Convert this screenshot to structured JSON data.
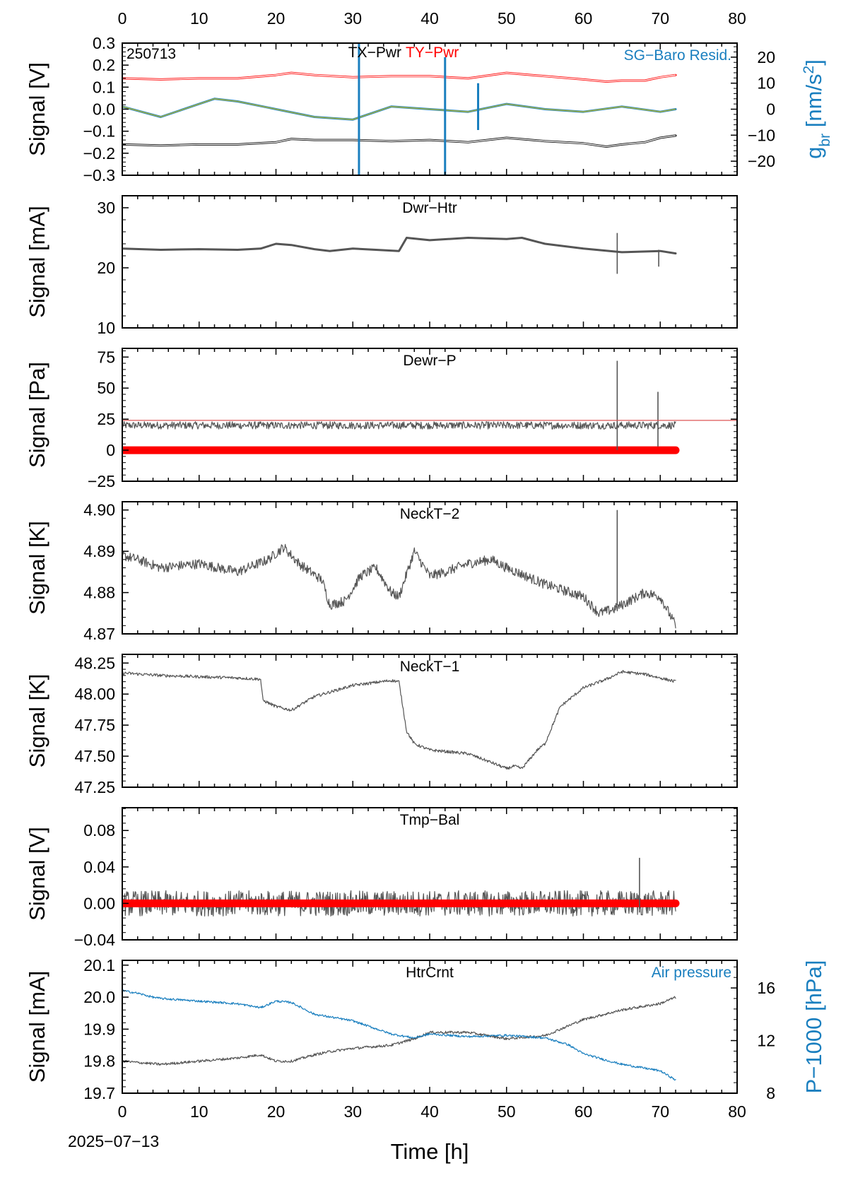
{
  "page": {
    "date_label": "2025−07−13",
    "x_axis_title": "Time [h]"
  },
  "chart_data": [
    {
      "id": "p1",
      "type": "line",
      "label": "250713",
      "series_labels": [
        "TX−Pwr",
        "TY−Pwr",
        "SG−Baro Resid."
      ],
      "ylabel": "Signal [V]",
      "y2label_main": "g",
      "y2label_sub": "br",
      "y2label_tail": " [nm/s",
      "y2label_sup": "2",
      "y2label_end": "]",
      "xlim": [
        0,
        80
      ],
      "ylim": [
        -0.3,
        0.3
      ],
      "yticks": [
        0.3,
        0.2,
        0.1,
        0.0,
        -0.1,
        -0.2,
        -0.3
      ],
      "ytick_labels": [
        "0.3",
        "0.2",
        "0.1",
        "0.0",
        "−0.1",
        "−0.2",
        "−0.3"
      ],
      "y2lim": [
        -25.4,
        25.4
      ],
      "y2ticks": [
        20,
        10,
        0,
        -10,
        -20
      ],
      "y2tick_labels": [
        "20",
        "10",
        "0",
        "−10",
        "−20"
      ],
      "series": [
        {
          "name": "TX−Pwr",
          "color": "#000000",
          "x": [
            0,
            5,
            10,
            15,
            20,
            22,
            25,
            30,
            35,
            40,
            45,
            50,
            55,
            60,
            63,
            65,
            68,
            70,
            72
          ],
          "y": [
            -0.16,
            -0.165,
            -0.16,
            -0.16,
            -0.15,
            -0.135,
            -0.14,
            -0.14,
            -0.145,
            -0.14,
            -0.15,
            -0.13,
            -0.145,
            -0.155,
            -0.17,
            -0.16,
            -0.15,
            -0.13,
            -0.12
          ]
        },
        {
          "name": "TY−Pwr",
          "color": "#ff0000",
          "x": [
            0,
            5,
            10,
            15,
            20,
            22,
            25,
            30,
            35,
            40,
            45,
            50,
            55,
            60,
            63,
            65,
            68,
            70,
            72
          ],
          "y": [
            0.14,
            0.135,
            0.14,
            0.14,
            0.155,
            0.165,
            0.155,
            0.145,
            0.15,
            0.15,
            0.14,
            0.165,
            0.15,
            0.135,
            0.125,
            0.13,
            0.13,
            0.145,
            0.155
          ]
        },
        {
          "name": "SG−Baro Resid.",
          "color": "#1a7fbf",
          "axis": "y2",
          "x": [
            0,
            5,
            10,
            12,
            15,
            20,
            25,
            30,
            35,
            40,
            45,
            50,
            55,
            60,
            65,
            70,
            72
          ],
          "y": [
            1,
            -3,
            2,
            4,
            3,
            0,
            -3,
            -4,
            1,
            0,
            -1,
            2,
            0,
            -1,
            1,
            -1,
            0
          ]
        }
      ],
      "spikes": [
        {
          "x": 30.8,
          "axis": "y2",
          "min": -30,
          "max": 27
        },
        {
          "x": 42.0,
          "axis": "y2",
          "min": -27,
          "max": 20
        },
        {
          "x": 46.3,
          "axis": "y2",
          "min": -8,
          "max": 10
        }
      ]
    },
    {
      "id": "p2",
      "type": "line",
      "label": "Dwr−Htr",
      "ylabel": "Signal [mA]",
      "xlim": [
        0,
        80
      ],
      "ylim": [
        10,
        32
      ],
      "yticks": [
        30,
        20,
        10
      ],
      "ytick_labels": [
        "30",
        "20",
        "10"
      ],
      "series": [
        {
          "name": "Dwr−Htr",
          "color": "#555555",
          "x": [
            0,
            5,
            10,
            15,
            18,
            20,
            22,
            25,
            27,
            30,
            33,
            36,
            37,
            40,
            45,
            50,
            52,
            55,
            60,
            65,
            70,
            72
          ],
          "y": [
            23.2,
            23.0,
            23.1,
            23.0,
            23.2,
            24.0,
            23.8,
            23.1,
            22.8,
            23.2,
            23.0,
            22.8,
            25.0,
            24.6,
            25.0,
            24.8,
            25.0,
            24.0,
            23.2,
            22.6,
            22.8,
            22.4
          ]
        }
      ],
      "spikes": [
        {
          "x": 64.4,
          "min": 19.0,
          "max": 25.8
        },
        {
          "x": 69.8,
          "min": 20.2,
          "max": 23.0
        }
      ]
    },
    {
      "id": "p3",
      "type": "line",
      "label": "Dewr−P",
      "ylabel": "Signal [Pa]",
      "xlim": [
        0,
        80
      ],
      "ylim": [
        -25,
        82
      ],
      "yticks": [
        75,
        50,
        25,
        0,
        -25
      ],
      "ytick_labels": [
        "75",
        "50",
        "25",
        "0",
        "−25"
      ],
      "reference_line": 24,
      "series": [
        {
          "name": "Dewr−P",
          "color": "#555555",
          "x": [
            0,
            10,
            20,
            30,
            40,
            50,
            60,
            70,
            72
          ],
          "y": [
            20,
            20,
            20,
            20,
            20,
            20,
            20,
            20,
            20
          ],
          "noise": 3
        },
        {
          "name": "zero",
          "color": "#ff0000",
          "x": [
            0,
            72
          ],
          "y": [
            0,
            0
          ]
        }
      ],
      "spikes": [
        {
          "x": 64.4,
          "min": 0,
          "max": 72
        },
        {
          "x": 69.7,
          "min": 3,
          "max": 47
        }
      ]
    },
    {
      "id": "p4",
      "type": "line",
      "label": "NeckT−2",
      "ylabel": "Signal [K]",
      "xlim": [
        0,
        80
      ],
      "ylim": [
        4.87,
        4.902
      ],
      "yticks": [
        4.9,
        4.89,
        4.88,
        4.87
      ],
      "ytick_labels": [
        "4.90",
        "4.89",
        "4.88",
        "4.87"
      ],
      "series": [
        {
          "name": "NeckT−2",
          "color": "#555555",
          "x": [
            0,
            2,
            5,
            10,
            15,
            19,
            21,
            23,
            26,
            27,
            29,
            31,
            33,
            35,
            36,
            38,
            40,
            42,
            45,
            48,
            50,
            55,
            60,
            62,
            64,
            66,
            68,
            70,
            72
          ],
          "y": [
            4.889,
            4.888,
            4.886,
            4.887,
            4.885,
            4.888,
            4.891,
            4.887,
            4.883,
            4.877,
            4.878,
            4.884,
            4.886,
            4.88,
            4.879,
            4.89,
            4.884,
            4.885,
            4.887,
            4.888,
            4.886,
            4.882,
            4.879,
            4.875,
            4.876,
            4.878,
            4.88,
            4.879,
            4.872
          ],
          "noise": 0.0012
        }
      ],
      "spikes": [
        {
          "x": 64.4,
          "min": 4.877,
          "max": 4.9
        }
      ]
    },
    {
      "id": "p5",
      "type": "line",
      "label": "NeckT−1",
      "ylabel": "Signal [K]",
      "xlim": [
        0,
        80
      ],
      "ylim": [
        47.25,
        48.32
      ],
      "yticks": [
        48.25,
        48.0,
        47.75,
        47.5,
        47.25
      ],
      "ytick_labels": [
        "48.25",
        "48.00",
        "47.75",
        "47.50",
        "47.25"
      ],
      "series": [
        {
          "name": "NeckT−1",
          "color": "#555555",
          "x": [
            0,
            5,
            10,
            15,
            18,
            18.3,
            20,
            22,
            25,
            30,
            35,
            36,
            36.5,
            37,
            38,
            40,
            45,
            48,
            50,
            51,
            52,
            54,
            55,
            57,
            60,
            63,
            65,
            68,
            72
          ],
          "y": [
            48.17,
            48.15,
            48.14,
            48.13,
            48.12,
            47.95,
            47.9,
            47.87,
            47.98,
            48.07,
            48.11,
            48.1,
            47.9,
            47.7,
            47.6,
            47.55,
            47.52,
            47.45,
            47.4,
            47.42,
            47.4,
            47.55,
            47.6,
            47.9,
            48.05,
            48.12,
            48.18,
            48.16,
            48.1
          ],
          "noise": 0.012
        }
      ]
    },
    {
      "id": "p6",
      "type": "line",
      "label": "Tmp−Bal",
      "ylabel": "Signal [V]",
      "xlim": [
        0,
        80
      ],
      "ylim": [
        -0.04,
        0.105
      ],
      "yticks": [
        0.08,
        0.04,
        0.0,
        -0.04
      ],
      "ytick_labels": [
        "0.08",
        "0.04",
        "0.00",
        "−0.04"
      ],
      "series": [
        {
          "name": "Tmp−Bal",
          "color": "#555555",
          "x": [
            0,
            72
          ],
          "y": [
            0.0,
            0.0
          ],
          "noise": 0.014
        },
        {
          "name": "zero",
          "color": "#ff0000",
          "x": [
            0,
            72
          ],
          "y": [
            0,
            0
          ]
        }
      ],
      "spikes": [
        {
          "x": 67.3,
          "min": -0.01,
          "max": 0.05
        }
      ]
    },
    {
      "id": "p7",
      "type": "line",
      "label": "HtrCrnt",
      "series_labels": [
        "Air pressure"
      ],
      "ylabel": "Signal [mA]",
      "y2label": "P−1000 [hPa]",
      "xlim": [
        0,
        80
      ],
      "ylim": [
        19.7,
        20.115
      ],
      "yticks": [
        20.1,
        20.0,
        19.9,
        19.8,
        19.7
      ],
      "ytick_labels": [
        "20.1",
        "20.0",
        "19.9",
        "19.8",
        "19.7"
      ],
      "y2lim": [
        8,
        18.1
      ],
      "y2ticks": [
        16,
        12,
        8
      ],
      "y2tick_labels": [
        "16",
        "12",
        "8"
      ],
      "series": [
        {
          "name": "HtrCrnt",
          "color": "#555555",
          "x": [
            0,
            5,
            10,
            15,
            18,
            20,
            22,
            25,
            27,
            30,
            35,
            38,
            40,
            45,
            50,
            55,
            60,
            65,
            70,
            72
          ],
          "y": [
            19.8,
            19.79,
            19.8,
            19.81,
            19.82,
            19.8,
            19.8,
            19.82,
            19.83,
            19.84,
            19.85,
            19.87,
            19.89,
            19.89,
            19.87,
            19.88,
            19.93,
            19.96,
            19.98,
            20.0
          ],
          "noise": 0.004
        },
        {
          "name": "Air pressure",
          "color": "#1a7fbf",
          "axis": "y2",
          "x": [
            0,
            2,
            4,
            5,
            10,
            15,
            18,
            20,
            22,
            25,
            30,
            35,
            38,
            40,
            45,
            50,
            55,
            58,
            60,
            63,
            65,
            70,
            72
          ],
          "y": [
            15.8,
            15.6,
            15.3,
            15.2,
            15.0,
            14.8,
            14.5,
            15.0,
            14.9,
            14.0,
            13.5,
            12.5,
            12.2,
            12.5,
            12.3,
            12.4,
            12.2,
            11.7,
            11.0,
            10.5,
            10.2,
            9.7,
            9.0
          ],
          "noise": 0.08
        }
      ]
    }
  ],
  "x_axis": {
    "xlim": [
      0,
      80
    ],
    "ticks": [
      0,
      10,
      20,
      30,
      40,
      50,
      60,
      70,
      80
    ],
    "tick_labels": [
      "0",
      "10",
      "20",
      "30",
      "40",
      "50",
      "60",
      "70",
      "80"
    ]
  }
}
